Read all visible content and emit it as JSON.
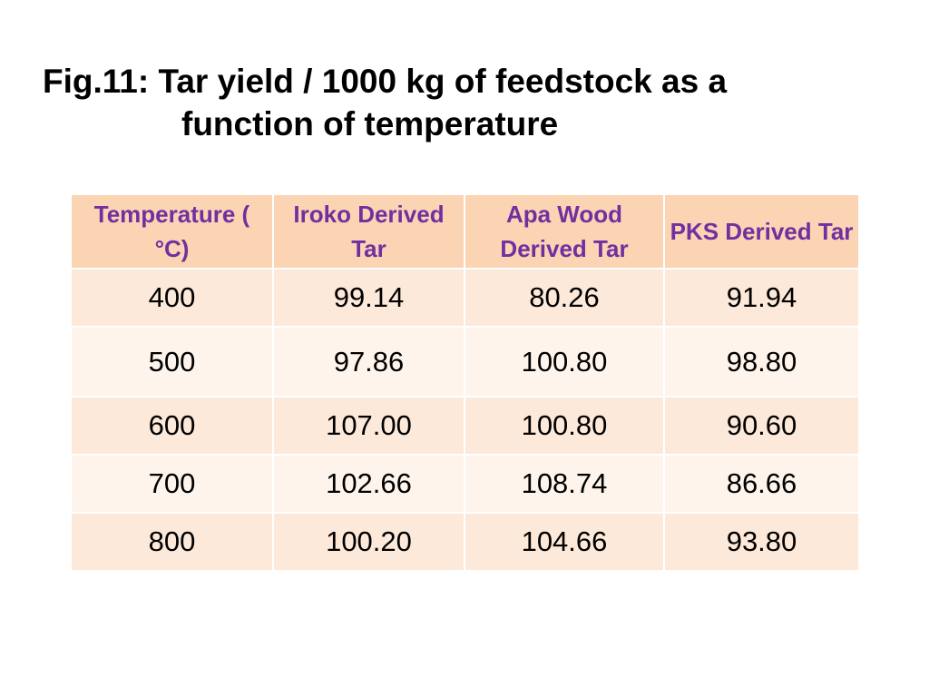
{
  "title": {
    "lines": [
      "Fig.11: Tar yield / 1000 kg of feedstock as a",
      "function of temperature"
    ]
  },
  "table": {
    "headers": [
      "Temperature ( °C)",
      "Iroko Derived Tar",
      "Apa Wood Derived Tar",
      "PKS Derived Tar"
    ],
    "rows": [
      [
        "400",
        "99.14",
        "80.26",
        "91.94"
      ],
      [
        "500",
        "97.86",
        "100.80",
        "98.80"
      ],
      [
        "600",
        "107.00",
        "100.80",
        "90.60"
      ],
      [
        "700",
        "102.66",
        "108.74",
        "86.66"
      ],
      [
        "800",
        "100.20",
        "104.66",
        "93.80"
      ]
    ]
  }
}
